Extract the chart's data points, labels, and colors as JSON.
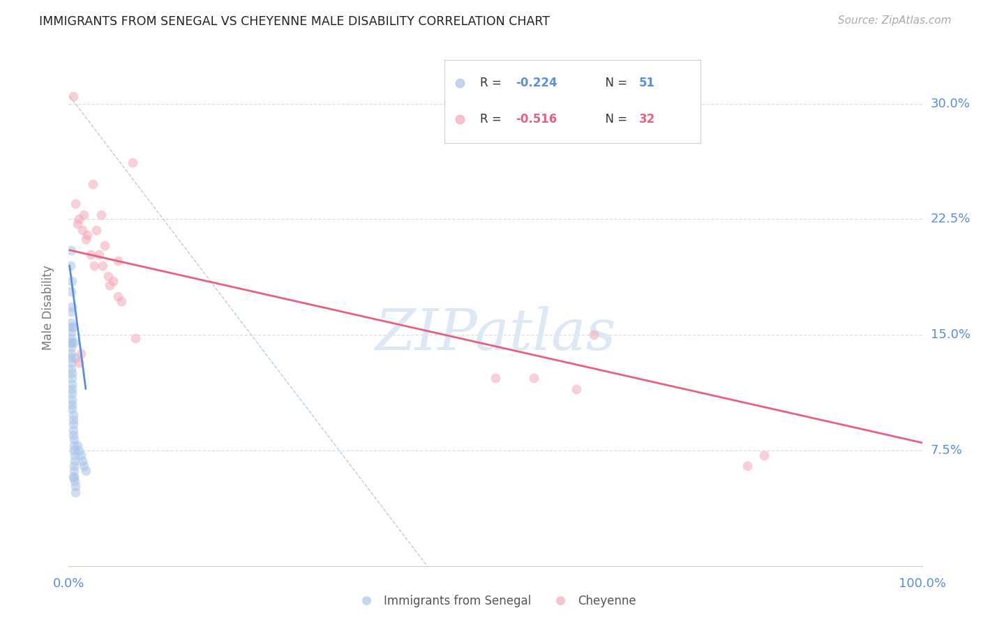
{
  "title": "IMMIGRANTS FROM SENEGAL VS CHEYENNE MALE DISABILITY CORRELATION CHART",
  "source": "Source: ZipAtlas.com",
  "ylabel": "Male Disability",
  "ytick_values": [
    0.075,
    0.15,
    0.225,
    0.3
  ],
  "ytick_labels": [
    "7.5%",
    "15.0%",
    "22.5%",
    "30.0%"
  ],
  "xlim": [
    0.0,
    1.0
  ],
  "ylim": [
    0.0,
    0.335
  ],
  "blue_color": "#a8c4e8",
  "pink_color": "#f4a8b8",
  "trendline_blue_color": "#5b8fd9",
  "trendline_pink_color": "#e86080",
  "trendline_dash_color": "#b8cce8",
  "watermark_color": "#dce8f5",
  "title_color": "#222222",
  "source_color": "#aaaaaa",
  "axis_label_color": "#5b8dd9",
  "ylabel_color": "#777777",
  "grid_color": "#dddddd",
  "legend_r1": "-0.224",
  "legend_n1": "51",
  "legend_r2": "-0.516",
  "legend_n2": "32",
  "blue_scatter": [
    [
      0.002,
      0.195
    ],
    [
      0.003,
      0.178
    ],
    [
      0.004,
      0.168
    ],
    [
      0.003,
      0.158
    ],
    [
      0.003,
      0.152
    ],
    [
      0.003,
      0.148
    ],
    [
      0.003,
      0.145
    ],
    [
      0.003,
      0.142
    ],
    [
      0.003,
      0.138
    ],
    [
      0.003,
      0.135
    ],
    [
      0.003,
      0.132
    ],
    [
      0.003,
      0.128
    ],
    [
      0.004,
      0.125
    ],
    [
      0.004,
      0.122
    ],
    [
      0.004,
      0.118
    ],
    [
      0.004,
      0.115
    ],
    [
      0.004,
      0.112
    ],
    [
      0.004,
      0.108
    ],
    [
      0.004,
      0.105
    ],
    [
      0.004,
      0.102
    ],
    [
      0.005,
      0.098
    ],
    [
      0.005,
      0.095
    ],
    [
      0.005,
      0.092
    ],
    [
      0.005,
      0.088
    ],
    [
      0.005,
      0.085
    ],
    [
      0.006,
      0.082
    ],
    [
      0.006,
      0.078
    ],
    [
      0.006,
      0.075
    ],
    [
      0.007,
      0.072
    ],
    [
      0.007,
      0.068
    ],
    [
      0.006,
      0.065
    ],
    [
      0.006,
      0.062
    ],
    [
      0.006,
      0.058
    ],
    [
      0.007,
      0.055
    ],
    [
      0.008,
      0.052
    ],
    [
      0.008,
      0.048
    ],
    [
      0.01,
      0.078
    ],
    [
      0.012,
      0.075
    ],
    [
      0.014,
      0.072
    ],
    [
      0.016,
      0.068
    ],
    [
      0.018,
      0.065
    ],
    [
      0.02,
      0.062
    ],
    [
      0.003,
      0.205
    ],
    [
      0.004,
      0.185
    ],
    [
      0.003,
      0.165
    ],
    [
      0.003,
      0.155
    ],
    [
      0.003,
      0.145
    ],
    [
      0.005,
      0.155
    ],
    [
      0.006,
      0.145
    ],
    [
      0.008,
      0.135
    ],
    [
      0.005,
      0.058
    ]
  ],
  "pink_scatter": [
    [
      0.005,
      0.305
    ],
    [
      0.028,
      0.248
    ],
    [
      0.038,
      0.228
    ],
    [
      0.058,
      0.198
    ],
    [
      0.018,
      0.228
    ],
    [
      0.022,
      0.215
    ],
    [
      0.012,
      0.225
    ],
    [
      0.032,
      0.218
    ],
    [
      0.042,
      0.208
    ],
    [
      0.008,
      0.235
    ],
    [
      0.01,
      0.222
    ],
    [
      0.016,
      0.218
    ],
    [
      0.02,
      0.212
    ],
    [
      0.026,
      0.202
    ],
    [
      0.03,
      0.195
    ],
    [
      0.036,
      0.202
    ],
    [
      0.04,
      0.195
    ],
    [
      0.046,
      0.188
    ],
    [
      0.048,
      0.182
    ],
    [
      0.052,
      0.185
    ],
    [
      0.058,
      0.175
    ],
    [
      0.062,
      0.172
    ],
    [
      0.078,
      0.148
    ],
    [
      0.5,
      0.122
    ],
    [
      0.545,
      0.122
    ],
    [
      0.595,
      0.115
    ],
    [
      0.615,
      0.15
    ],
    [
      0.012,
      0.132
    ],
    [
      0.014,
      0.138
    ],
    [
      0.795,
      0.065
    ],
    [
      0.815,
      0.072
    ],
    [
      0.075,
      0.262
    ]
  ],
  "blue_trendline_x": [
    0.001,
    0.02
  ],
  "blue_trendline_y": [
    0.195,
    0.115
  ],
  "pink_trendline_x": [
    0.001,
    1.0
  ],
  "pink_trendline_y": [
    0.205,
    0.08
  ],
  "dash_trendline_x": [
    0.001,
    0.42
  ],
  "dash_trendline_y": [
    0.305,
    0.0
  ]
}
